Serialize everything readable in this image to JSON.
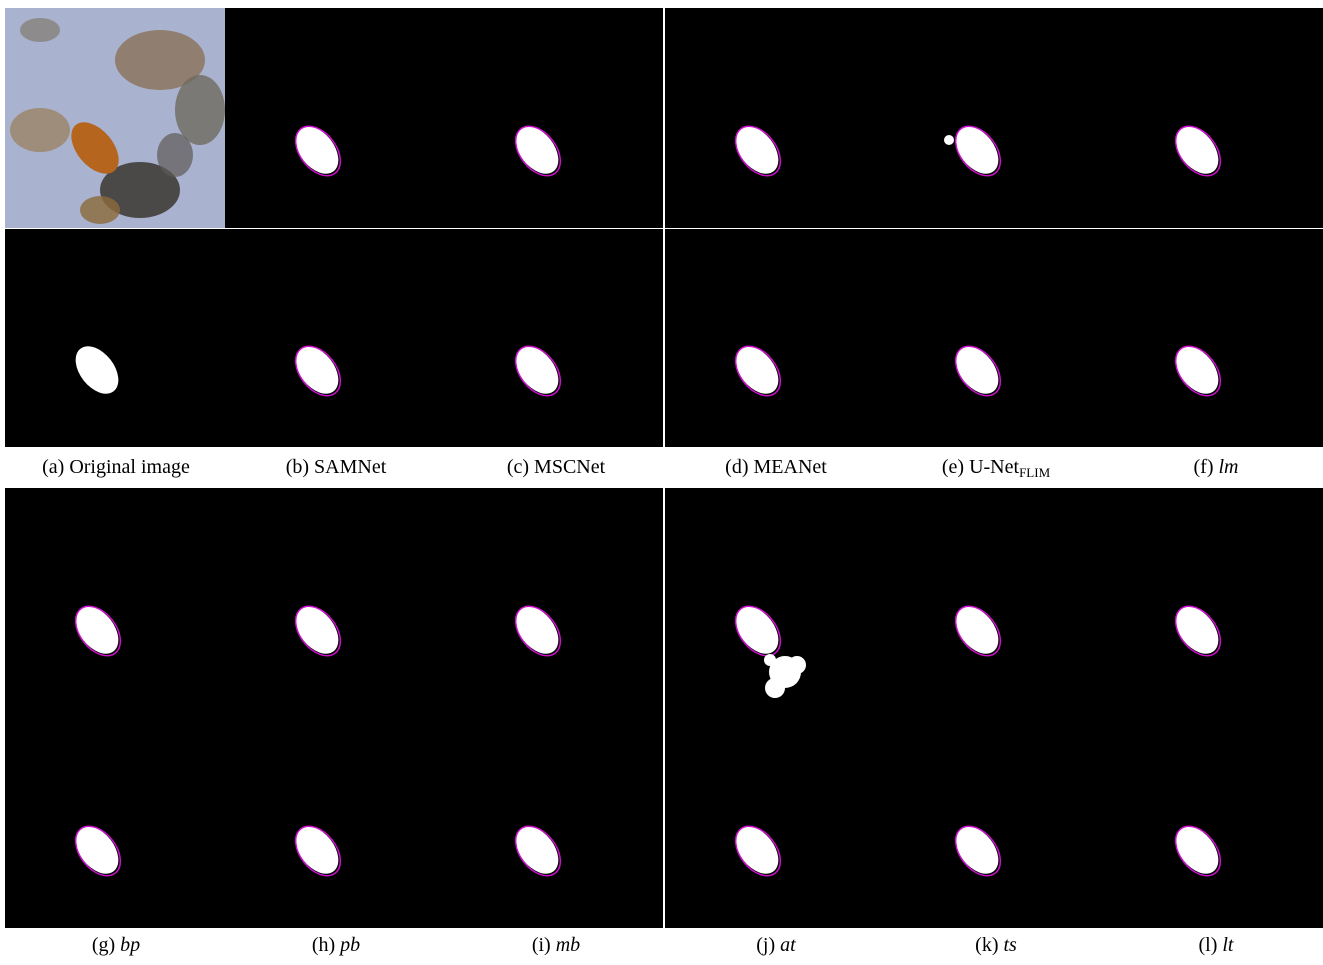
{
  "figure": {
    "panels": [
      {
        "label": "(a)",
        "name": "Original image"
      },
      {
        "label": "(b)",
        "name": "SAMNet"
      },
      {
        "label": "(c)",
        "name": "MSCNet"
      },
      {
        "label": "(d)",
        "name": "MEANet"
      },
      {
        "label": "(e)",
        "name": "U-Net",
        "subscript": "FLIM"
      },
      {
        "label": "(f)",
        "name": "lm"
      },
      {
        "label": "(g)",
        "name": "bp"
      },
      {
        "label": "(h)",
        "name": "pb"
      },
      {
        "label": "(i)",
        "name": "mb"
      },
      {
        "label": "(j)",
        "name": "at"
      },
      {
        "label": "(k)",
        "name": "ts"
      },
      {
        "label": "(l)",
        "name": "lt"
      }
    ]
  }
}
